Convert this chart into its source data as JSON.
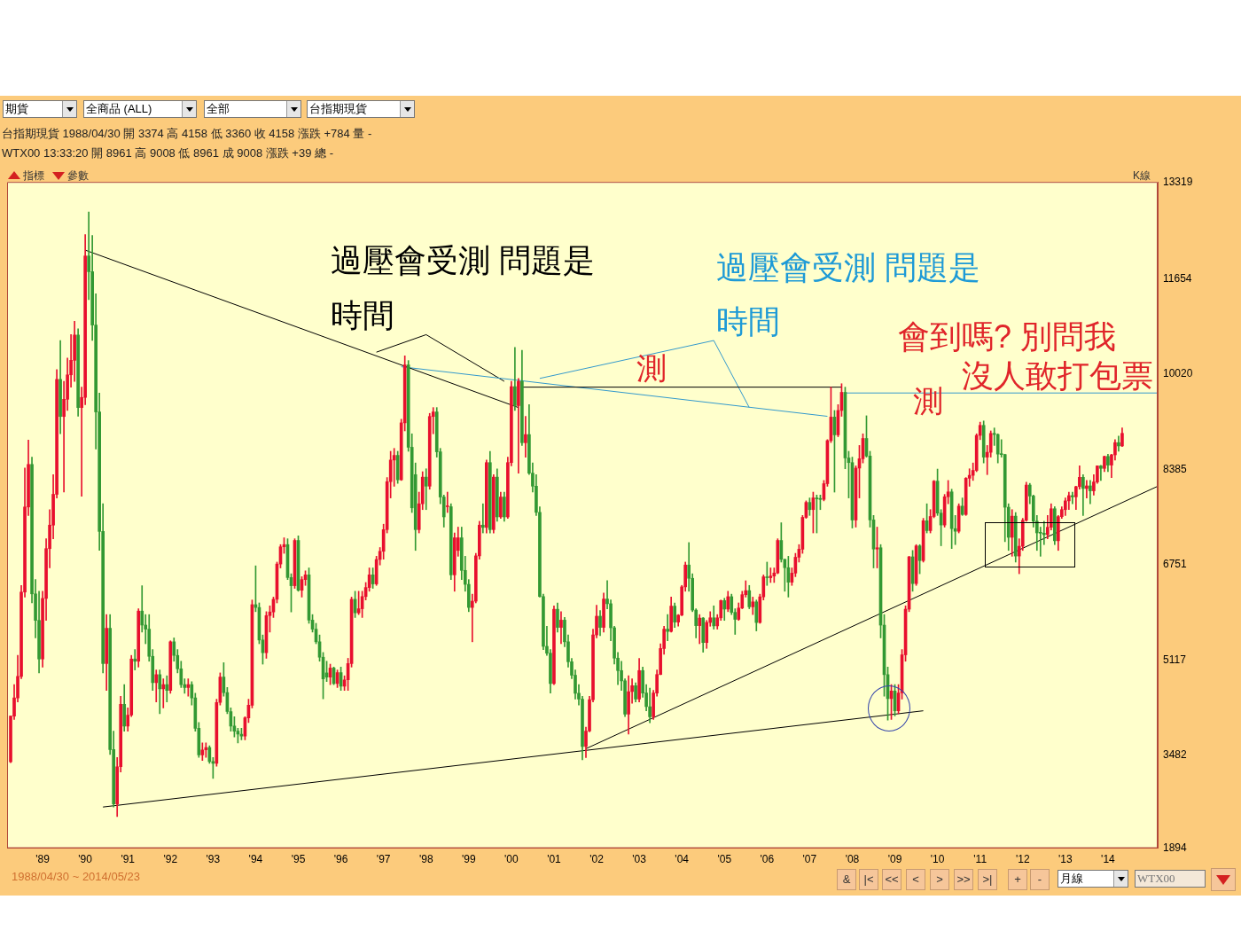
{
  "chart_data": {
    "type": "candlestick",
    "x": [
      "1988-04",
      "1988-05",
      "1988-06",
      "1988-07",
      "1988-08",
      "1988-09",
      "1988-10",
      "1988-11",
      "1988-12",
      "1989-01",
      "1989-02",
      "1989-03",
      "1989-04",
      "1989-05",
      "1989-06",
      "1989-07",
      "1989-08",
      "1989-09",
      "1989-10",
      "1989-11",
      "1989-12",
      "1990-01",
      "1990-02",
      "1990-03",
      "1990-04",
      "1990-05",
      "1990-06",
      "1990-07",
      "1990-08",
      "1990-09",
      "1990-10",
      "1990-11",
      "1990-12",
      "1991-01",
      "1991-02",
      "1991-03",
      "1991-04",
      "1991-05",
      "1991-06",
      "1991-07",
      "1991-08",
      "1991-09",
      "1991-10",
      "1991-11",
      "1991-12",
      "1992-01",
      "1992-02",
      "1992-03",
      "1992-04",
      "1992-05",
      "1992-06",
      "1992-07",
      "1992-08",
      "1992-09",
      "1992-10",
      "1992-11",
      "1992-12",
      "1993-01",
      "1993-02",
      "1993-03",
      "1993-04",
      "1993-05",
      "1993-06",
      "1993-07",
      "1993-08",
      "1993-09",
      "1993-10",
      "1993-11",
      "1993-12",
      "1994-01",
      "1994-02",
      "1994-03",
      "1994-04",
      "1994-05",
      "1994-06",
      "1994-07",
      "1994-08",
      "1994-09",
      "1994-10",
      "1994-11",
      "1994-12",
      "1995-01",
      "1995-02",
      "1995-03",
      "1995-04",
      "1995-05",
      "1995-06",
      "1995-07",
      "1995-08",
      "1995-09",
      "1995-10",
      "1995-11",
      "1995-12",
      "1996-01",
      "1996-02",
      "1996-03",
      "1996-04",
      "1996-05",
      "1996-06",
      "1996-07",
      "1996-08",
      "1996-09",
      "1996-10",
      "1996-11",
      "1996-12",
      "1997-01",
      "1997-02",
      "1997-03",
      "1997-04",
      "1997-05",
      "1997-06",
      "1997-07",
      "1997-08",
      "1997-09",
      "1997-10",
      "1997-11",
      "1997-12",
      "1998-01",
      "1998-02",
      "1998-03",
      "1998-04",
      "1998-05",
      "1998-06",
      "1998-07",
      "1998-08",
      "1998-09",
      "1998-10",
      "1998-11",
      "1998-12",
      "1999-01",
      "1999-02",
      "1999-03",
      "1999-04",
      "1999-05",
      "1999-06",
      "1999-07",
      "1999-08",
      "1999-09",
      "1999-10",
      "1999-11",
      "1999-12",
      "2000-01",
      "2000-02",
      "2000-03",
      "2000-04",
      "2000-05",
      "2000-06",
      "2000-07",
      "2000-08",
      "2000-09",
      "2000-10",
      "2000-11",
      "2000-12",
      "2001-01",
      "2001-02",
      "2001-03",
      "2001-04",
      "2001-05",
      "2001-06",
      "2001-07",
      "2001-08",
      "2001-09",
      "2001-10",
      "2001-11",
      "2001-12",
      "2002-01",
      "2002-02",
      "2002-03",
      "2002-04",
      "2002-05",
      "2002-06",
      "2002-07",
      "2002-08",
      "2002-09",
      "2002-10",
      "2002-11",
      "2002-12",
      "2003-01",
      "2003-02",
      "2003-03",
      "2003-04",
      "2003-05",
      "2003-06",
      "2003-07",
      "2003-08",
      "2003-09",
      "2003-10",
      "2003-11",
      "2003-12",
      "2004-01",
      "2004-02",
      "2004-03",
      "2004-04",
      "2004-05",
      "2004-06",
      "2004-07",
      "2004-08",
      "2004-09",
      "2004-10",
      "2004-11",
      "2004-12",
      "2005-01",
      "2005-02",
      "2005-03",
      "2005-04",
      "2005-05",
      "2005-06",
      "2005-07",
      "2005-08",
      "2005-09",
      "2005-10",
      "2005-11",
      "2005-12",
      "2006-01",
      "2006-02",
      "2006-03",
      "2006-04",
      "2006-05",
      "2006-06",
      "2006-07",
      "2006-08",
      "2006-09",
      "2006-10",
      "2006-11",
      "2006-12",
      "2007-01",
      "2007-02",
      "2007-03",
      "2007-04",
      "2007-05",
      "2007-06",
      "2007-07",
      "2007-08",
      "2007-09",
      "2007-10",
      "2007-11",
      "2007-12",
      "2008-01",
      "2008-02",
      "2008-03",
      "2008-04",
      "2008-05",
      "2008-06",
      "2008-07",
      "2008-08",
      "2008-09",
      "2008-10",
      "2008-11",
      "2008-12",
      "2009-01",
      "2009-02",
      "2009-03",
      "2009-04",
      "2009-05",
      "2009-06",
      "2009-07",
      "2009-08",
      "2009-09",
      "2009-10",
      "2009-11",
      "2009-12",
      "2010-01",
      "2010-02",
      "2010-03",
      "2010-04",
      "2010-05",
      "2010-06",
      "2010-07",
      "2010-08",
      "2010-09",
      "2010-10",
      "2010-11",
      "2010-12",
      "2011-01",
      "2011-02",
      "2011-03",
      "2011-04",
      "2011-05",
      "2011-06",
      "2011-07",
      "2011-08",
      "2011-09",
      "2011-10",
      "2011-11",
      "2011-12",
      "2012-01",
      "2012-02",
      "2012-03",
      "2012-04",
      "2012-05",
      "2012-06",
      "2012-07",
      "2012-08",
      "2012-09",
      "2012-10",
      "2012-11",
      "2012-12",
      "2013-01",
      "2013-02",
      "2013-03",
      "2013-04",
      "2013-05",
      "2013-06",
      "2013-07",
      "2013-08",
      "2013-09",
      "2013-10",
      "2013-11",
      "2013-12",
      "2014-01",
      "2014-02",
      "2014-03",
      "2014-04",
      "2014-05"
    ],
    "ohlc": [
      [
        3374,
        4158,
        3360,
        4158
      ],
      [
        4158,
        4700,
        4100,
        4470
      ],
      [
        4470,
        5200,
        4400,
        4840
      ],
      [
        4840,
        6400,
        4800,
        6286
      ],
      [
        6286,
        8413,
        6200,
        7745
      ],
      [
        7745,
        8894,
        7600,
        8475
      ],
      [
        8475,
        8600,
        6100,
        6255
      ],
      [
        6255,
        6500,
        5500,
        5800
      ],
      [
        5800,
        6300,
        4900,
        5138
      ],
      [
        5138,
        6300,
        5000,
        6177
      ],
      [
        6177,
        7200,
        5800,
        7031
      ],
      [
        7031,
        7700,
        6700,
        7434
      ],
      [
        7434,
        8300,
        7200,
        7962
      ],
      [
        7962,
        10100,
        7900,
        9933
      ],
      [
        9933,
        10600,
        9000,
        9297
      ],
      [
        9297,
        9900,
        8000,
        9592
      ],
      [
        9592,
        10300,
        9400,
        10011
      ],
      [
        10011,
        10700,
        9800,
        10260
      ],
      [
        10260,
        10930,
        9900,
        10694
      ],
      [
        10694,
        10800,
        9300,
        9450
      ],
      [
        9450,
        9800,
        7931,
        9624
      ],
      [
        9624,
        12416,
        9500,
        12050
      ],
      [
        12050,
        12805,
        11300,
        11780
      ],
      [
        11780,
        12400,
        10600,
        10865
      ],
      [
        10865,
        11400,
        8738,
        9375
      ],
      [
        9375,
        9700,
        7000,
        7326
      ],
      [
        7326,
        7800,
        4900,
        5060
      ],
      [
        5060,
        5900,
        4600,
        5665
      ],
      [
        5665,
        5900,
        3500,
        3586
      ],
      [
        3586,
        3900,
        2600,
        2654
      ],
      [
        2654,
        3450,
        2437,
        3290
      ],
      [
        3290,
        4500,
        3200,
        4362
      ],
      [
        4362,
        4700,
        3900,
        3989
      ],
      [
        3989,
        4300,
        3900,
        4176
      ],
      [
        4176,
        5200,
        4150,
        5138
      ],
      [
        5138,
        5300,
        4950,
        5100
      ],
      [
        5100,
        6000,
        5000,
        5960
      ],
      [
        5960,
        6395,
        5600,
        5720
      ],
      [
        5720,
        5900,
        5400,
        5650
      ],
      [
        5650,
        5900,
        5100,
        5184
      ],
      [
        5184,
        5300,
        4600,
        4734
      ],
      [
        4734,
        4950,
        4400,
        4870
      ],
      [
        4870,
        4950,
        4200,
        4625
      ],
      [
        4625,
        4800,
        4300,
        4700
      ],
      [
        4700,
        4850,
        4400,
        4600
      ],
      [
        4600,
        5450,
        4550,
        5433
      ],
      [
        5433,
        5500,
        5100,
        5200
      ],
      [
        5200,
        5300,
        4900,
        4970
      ],
      [
        4970,
        5100,
        4650,
        4700
      ],
      [
        4700,
        4800,
        4550,
        4650
      ],
      [
        4650,
        4800,
        4500,
        4700
      ],
      [
        4700,
        4750,
        4350,
        4470
      ],
      [
        4470,
        4550,
        3900,
        3950
      ],
      [
        3950,
        4050,
        3450,
        3492
      ],
      [
        3492,
        3700,
        3400,
        3580
      ],
      [
        3580,
        3700,
        3450,
        3620
      ],
      [
        3620,
        3650,
        3350,
        3380
      ],
      [
        3380,
        3450,
        3089,
        3350
      ],
      [
        3350,
        4450,
        3300,
        4393
      ],
      [
        4393,
        4900,
        4350,
        4828
      ],
      [
        4828,
        5075,
        4500,
        4563
      ],
      [
        4563,
        4650,
        4200,
        4237
      ],
      [
        4237,
        4300,
        3900,
        3989
      ],
      [
        3989,
        4150,
        3800,
        3900
      ],
      [
        3900,
        3950,
        3700,
        3850
      ],
      [
        3850,
        3950,
        3750,
        3818
      ],
      [
        3818,
        4150,
        3750,
        4128
      ],
      [
        4128,
        4450,
        4050,
        4346
      ],
      [
        4346,
        6150,
        4300,
        6070
      ],
      [
        6070,
        6736,
        5950,
        6022
      ],
      [
        6022,
        6100,
        5400,
        5464
      ],
      [
        5464,
        5550,
        5050,
        5246
      ],
      [
        5246,
        5950,
        5150,
        5883
      ],
      [
        5883,
        6050,
        5600,
        5945
      ],
      [
        5945,
        6200,
        5850,
        6162
      ],
      [
        6162,
        6800,
        6100,
        6767
      ],
      [
        6767,
        7100,
        6700,
        7062
      ],
      [
        7062,
        7217,
        6950,
        7100
      ],
      [
        7100,
        7200,
        6500,
        6535
      ],
      [
        6535,
        6600,
        5945,
        6395
      ],
      [
        6395,
        7200,
        6350,
        7171
      ],
      [
        7171,
        7250,
        6300,
        6317
      ],
      [
        6317,
        6550,
        6200,
        6500
      ],
      [
        6500,
        6650,
        6400,
        6581
      ],
      [
        6581,
        6700,
        5750,
        5805
      ],
      [
        5805,
        5900,
        5600,
        5650
      ],
      [
        5650,
        5750,
        5400,
        5433
      ],
      [
        5433,
        5550,
        5100,
        5169
      ],
      [
        5169,
        5250,
        4455,
        4797
      ],
      [
        4900,
        5100,
        4750,
        4828
      ],
      [
        4828,
        5050,
        4700,
        4983
      ],
      [
        4983,
        5000,
        4700,
        4719
      ],
      [
        4719,
        4950,
        4650,
        4905
      ],
      [
        4905,
        5000,
        4600,
        4672
      ],
      [
        4672,
        4850,
        4600,
        4780
      ],
      [
        4780,
        5150,
        4600,
        5060
      ],
      [
        5060,
        6200,
        5000,
        6162
      ],
      [
        6162,
        6300,
        5850,
        5930
      ],
      [
        5930,
        6300,
        5900,
        6000
      ],
      [
        6000,
        6300,
        5850,
        6209
      ],
      [
        6209,
        6450,
        6150,
        6364
      ],
      [
        6364,
        6700,
        6300,
        6581
      ],
      [
        6581,
        6700,
        6350,
        6426
      ],
      [
        6426,
        6900,
        6400,
        6845
      ],
      [
        6845,
        7050,
        6750,
        6985
      ],
      [
        6985,
        7450,
        6850,
        7357
      ],
      [
        7357,
        8250,
        7300,
        8180
      ],
      [
        8180,
        8700,
        7900,
        8550
      ],
      [
        8550,
        8750,
        8100,
        8630
      ],
      [
        8630,
        8700,
        8150,
        8211
      ],
      [
        8211,
        9250,
        8200,
        9188
      ],
      [
        9188,
        10337,
        9050,
        10181
      ],
      [
        10181,
        10256,
        8700,
        8769
      ],
      [
        8769,
        9000,
        7650,
        7730
      ],
      [
        8300,
        8500,
        7000,
        7357
      ],
      [
        7357,
        8000,
        7300,
        7800
      ],
      [
        7800,
        8350,
        7700,
        8257
      ],
      [
        8257,
        8400,
        7700,
        8102
      ],
      [
        8102,
        9350,
        8050,
        9297
      ],
      [
        9297,
        9450,
        9000,
        9375
      ],
      [
        9375,
        9450,
        8600,
        8691
      ],
      [
        8691,
        8750,
        7800,
        7916
      ],
      [
        7916,
        7950,
        7400,
        7575
      ],
      [
        7750,
        8000,
        7650,
        7750
      ],
      [
        7750,
        7800,
        6500,
        6581
      ],
      [
        6581,
        7300,
        6300,
        7217
      ],
      [
        7000,
        7400,
        6900,
        7217
      ],
      [
        7217,
        7400,
        6500,
        6658
      ],
      [
        6658,
        6900,
        6300,
        6418
      ],
      [
        6418,
        6500,
        5950,
        6022
      ],
      [
        6022,
        6250,
        5433,
        6130
      ],
      [
        6130,
        6950,
        6100,
        6907
      ],
      [
        6907,
        7500,
        6850,
        7434
      ],
      [
        7434,
        7800,
        7300,
        7395
      ],
      [
        7395,
        8550,
        7300,
        8506
      ],
      [
        8506,
        8700,
        7300,
        7357
      ],
      [
        7357,
        8300,
        7300,
        8257
      ],
      [
        8257,
        8400,
        7500,
        7575
      ],
      [
        7575,
        8000,
        7550,
        7916
      ],
      [
        7916,
        8000,
        7500,
        7575
      ],
      [
        7575,
        8600,
        7550,
        8506
      ],
      [
        8506,
        9900,
        8450,
        9809
      ],
      [
        9809,
        10482,
        9400,
        9483
      ],
      [
        9483,
        9950,
        8325,
        9900
      ],
      [
        9900,
        10430,
        8800,
        8847
      ],
      [
        8847,
        9300,
        8600,
        8987
      ],
      [
        8987,
        9500,
        8300,
        8325
      ],
      [
        8325,
        8500,
        8000,
        8102
      ],
      [
        8102,
        8300,
        7600,
        7653
      ],
      [
        7653,
        7750,
        6200,
        6209
      ],
      [
        6209,
        6250,
        5300,
        5355
      ],
      [
        5355,
        5700,
        5200,
        5238
      ],
      [
        5238,
        5300,
        4555,
        4719
      ],
      [
        4719,
        6050,
        4700,
        5991
      ],
      [
        5991,
        6100,
        5600,
        5680
      ],
      [
        5680,
        5950,
        5400,
        5805
      ],
      [
        5805,
        5850,
        5350,
        5433
      ],
      [
        5433,
        5550,
        5000,
        5091
      ],
      [
        5091,
        5150,
        4800,
        4860
      ],
      [
        4860,
        4950,
        4450,
        4550
      ],
      [
        4550,
        4700,
        4350,
        4450
      ],
      [
        4450,
        4500,
        3411,
        3636
      ],
      [
        3636,
        3970,
        3446,
        3903
      ],
      [
        3903,
        4500,
        3890,
        4441
      ],
      [
        4441,
        5650,
        4400,
        5551
      ],
      [
        5551,
        6060,
        5500,
        5872
      ],
      [
        5872,
        5970,
        5540,
        5680
      ],
      [
        5680,
        6270,
        5600,
        6167
      ],
      [
        6167,
        6484,
        6000,
        6086
      ],
      [
        6086,
        6150,
        5450,
        5674
      ],
      [
        5674,
        5700,
        5050,
        5153
      ],
      [
        5153,
        5250,
        4700,
        4940
      ],
      [
        4940,
        5100,
        4600,
        4764
      ],
      [
        4764,
        4800,
        4150,
        4191
      ],
      [
        4191,
        4850,
        3850,
        4579
      ],
      [
        4579,
        4800,
        4380,
        4680
      ],
      [
        4680,
        4730,
        4400,
        4452
      ],
      [
        4452,
        5150,
        4400,
        4940
      ],
      [
        4940,
        5000,
        4480,
        4555
      ],
      [
        4555,
        4700,
        4250,
        4321
      ],
      [
        4321,
        4640,
        4044,
        4148
      ],
      [
        4148,
        4600,
        4100,
        4555
      ],
      [
        4555,
        4950,
        4500,
        4872
      ],
      [
        4872,
        5400,
        4870,
        5318
      ],
      [
        5318,
        5700,
        5220,
        5650
      ],
      [
        5650,
        5900,
        5450,
        5611
      ],
      [
        5611,
        6200,
        5600,
        6045
      ],
      [
        6045,
        6100,
        5680,
        5771
      ],
      [
        5771,
        5900,
        5700,
        5890
      ],
      [
        5890,
        6400,
        5880,
        6375
      ],
      [
        6375,
        6800,
        6300,
        6750
      ],
      [
        6750,
        7135,
        6300,
        6522
      ],
      [
        6522,
        6600,
        5950,
        5977
      ],
      [
        5977,
        6000,
        5500,
        5710
      ],
      [
        5710,
        5900,
        5400,
        5840
      ],
      [
        5840,
        5850,
        5255,
        5420
      ],
      [
        5420,
        5800,
        5320,
        5765
      ],
      [
        5765,
        5950,
        5700,
        5845
      ],
      [
        5845,
        6050,
        5650,
        5706
      ],
      [
        5706,
        5900,
        5650,
        5844
      ],
      [
        5844,
        6150,
        5800,
        6140
      ],
      [
        6140,
        6180,
        5800,
        5994
      ],
      [
        5994,
        6300,
        5950,
        6207
      ],
      [
        6207,
        6250,
        5900,
        5938
      ],
      [
        5938,
        6000,
        5560,
        5818
      ],
      [
        5818,
        6100,
        5800,
        6012
      ],
      [
        6012,
        6300,
        6000,
        6241
      ],
      [
        6241,
        6480,
        6200,
        6311
      ],
      [
        6311,
        6400,
        6000,
        6033
      ],
      [
        6033,
        6200,
        5900,
        6118
      ],
      [
        6118,
        6150,
        5620,
        5764
      ],
      [
        5764,
        6250,
        5750,
        6204
      ],
      [
        6204,
        6580,
        6150,
        6548
      ],
      [
        6548,
        6800,
        6400,
        6532
      ],
      [
        6532,
        6700,
        6450,
        6561
      ],
      [
        6561,
        6700,
        6450,
        6613
      ],
      [
        6613,
        7200,
        6600,
        7171
      ],
      [
        7171,
        7475,
        6800,
        6847
      ],
      [
        6847,
        6850,
        6300,
        6704
      ],
      [
        6704,
        6900,
        6200,
        6455
      ],
      [
        6455,
        6700,
        6400,
        6611
      ],
      [
        6611,
        6950,
        6550,
        6883
      ],
      [
        6883,
        7100,
        6800,
        7021
      ],
      [
        7021,
        7600,
        6950,
        7567
      ],
      [
        7567,
        7850,
        7550,
        7823
      ],
      [
        7823,
        7900,
        7600,
        7700
      ],
      [
        7700,
        8000,
        7300,
        7901
      ],
      [
        7901,
        7950,
        7300,
        7884
      ],
      [
        7884,
        7950,
        7700,
        7875
      ],
      [
        7875,
        8200,
        7850,
        8145
      ],
      [
        8145,
        8900,
        8100,
        8883
      ],
      [
        8883,
        9800,
        8850,
        9287
      ],
      [
        9287,
        9400,
        8000,
        8982
      ],
      [
        8982,
        9500,
        8950,
        9400
      ],
      [
        9400,
        9859,
        9300,
        9711
      ],
      [
        9711,
        9800,
        8400,
        8586
      ],
      [
        8586,
        8700,
        7900,
        8506
      ],
      [
        8506,
        8600,
        7384,
        7521
      ],
      [
        7521,
        8450,
        7400,
        8412
      ],
      [
        8412,
        8800,
        7900,
        8572
      ],
      [
        8572,
        9000,
        8500,
        8920
      ],
      [
        8920,
        9309,
        8600,
        8619
      ],
      [
        8619,
        8700,
        7400,
        7523
      ],
      [
        7523,
        7600,
        6700,
        7024
      ],
      [
        7024,
        7400,
        6700,
        7046
      ],
      [
        7046,
        7100,
        5500,
        5719
      ],
      [
        5719,
        5900,
        4500,
        4870
      ],
      [
        4870,
        5000,
        4089,
        4460
      ],
      [
        4460,
        4700,
        4100,
        4591
      ],
      [
        4591,
        4700,
        4164,
        4248
      ],
      [
        4248,
        4700,
        4200,
        4557
      ],
      [
        4557,
        5300,
        4450,
        5210
      ],
      [
        5210,
        6050,
        5100,
        5993
      ],
      [
        5993,
        6900,
        5950,
        6890
      ],
      [
        6890,
        7000,
        6300,
        6432
      ],
      [
        6432,
        7100,
        6400,
        7078
      ],
      [
        7078,
        7100,
        6600,
        6826
      ],
      [
        6826,
        7550,
        6800,
        7509
      ],
      [
        7509,
        7800,
        7300,
        7340
      ],
      [
        7340,
        7700,
        7300,
        7582
      ],
      [
        7582,
        8200,
        7560,
        8188
      ],
      [
        8188,
        8395,
        7600,
        7640
      ],
      [
        7640,
        7700,
        7080,
        7436
      ],
      [
        7436,
        7960,
        7400,
        7920
      ],
      [
        7920,
        8200,
        7800,
        8004
      ],
      [
        8004,
        8050,
        7032,
        7374
      ],
      [
        7374,
        7600,
        7100,
        7329
      ],
      [
        7329,
        7800,
        7300,
        7760
      ],
      [
        7760,
        7900,
        7600,
        7616
      ],
      [
        7616,
        8250,
        7600,
        8238
      ],
      [
        8238,
        8400,
        8100,
        8288
      ],
      [
        8288,
        8500,
        8200,
        8372
      ],
      [
        8372,
        9000,
        8350,
        8973
      ],
      [
        8973,
        9200,
        8900,
        9145
      ],
      [
        9145,
        9220,
        8500,
        8600
      ],
      [
        8600,
        8800,
        8300,
        8683
      ],
      [
        8683,
        9050,
        8600,
        9007
      ],
      [
        9007,
        9100,
        8800,
        8988
      ],
      [
        8988,
        9000,
        8500,
        8652
      ],
      [
        8652,
        8900,
        8600,
        8644
      ],
      [
        8644,
        8650,
        7150,
        7741
      ],
      [
        7741,
        7800,
        7000,
        7225
      ],
      [
        7225,
        7700,
        6900,
        7588
      ],
      [
        7588,
        7650,
        6800,
        6904
      ],
      [
        6904,
        7200,
        6600,
        7072
      ],
      [
        7072,
        7550,
        7000,
        7517
      ],
      [
        7517,
        8170,
        7500,
        8121
      ],
      [
        8121,
        8150,
        7800,
        7933
      ],
      [
        7933,
        7950,
        7400,
        7501
      ],
      [
        7501,
        7600,
        7000,
        7301
      ],
      [
        7301,
        7400,
        6900,
        7296
      ],
      [
        7296,
        7500,
        7100,
        7270
      ],
      [
        7270,
        7600,
        7200,
        7397
      ],
      [
        7397,
        7800,
        7350,
        7715
      ],
      [
        7715,
        7750,
        7100,
        7166
      ],
      [
        7166,
        7600,
        7000,
        7580
      ],
      [
        7580,
        7750,
        7550,
        7700
      ],
      [
        7700,
        7900,
        7600,
        7850
      ],
      [
        7850,
        8000,
        7700,
        7940
      ],
      [
        7940,
        8000,
        7800,
        7919
      ],
      [
        7919,
        8100,
        7700,
        8094
      ],
      [
        8094,
        8450,
        8050,
        8254
      ],
      [
        8254,
        8300,
        7600,
        8062
      ],
      [
        8062,
        8200,
        7900,
        8107
      ],
      [
        8107,
        8200,
        7800,
        8022
      ],
      [
        8022,
        8300,
        7950,
        8174
      ],
      [
        8174,
        8450,
        8150,
        8450
      ],
      [
        8450,
        8460,
        8200,
        8407
      ],
      [
        8407,
        8620,
        8350,
        8612
      ],
      [
        8612,
        8650,
        8350,
        8463
      ],
      [
        8463,
        8650,
        8250,
        8639
      ],
      [
        8639,
        8900,
        8550,
        8849
      ],
      [
        8849,
        8960,
        8700,
        8792
      ],
      [
        8792,
        9100,
        8780,
        9008
      ]
    ],
    "series": [
      {
        "type": "line",
        "color": "#000000",
        "x": [
          "1990-01",
          "2000-03"
        ],
        "values": [
          12150,
          9450
        ]
      },
      {
        "type": "line",
        "color": "#000000",
        "x": [
          "1990-06",
          "2009-09"
        ],
        "values": [
          2600,
          4250
        ]
      },
      {
        "type": "line",
        "color": "#000000",
        "x": [
          "2001-10",
          "2015-03"
        ],
        "values": [
          3600,
          8100
        ]
      },
      {
        "type": "line",
        "color": "#000000",
        "x": [
          "2000-04",
          "2007-10"
        ],
        "values": [
          9800,
          9800
        ]
      },
      {
        "type": "line",
        "color": "#3399cc",
        "x": [
          "1997-06",
          "2007-06"
        ],
        "values": [
          10150,
          9300
        ]
      },
      {
        "type": "line",
        "color": "#3399cc",
        "x": [
          "2007-11",
          "2015-03"
        ],
        "values": [
          9700,
          9700
        ]
      },
      {
        "type": "line",
        "color": "#000000",
        "x": [
          "1996-11",
          "1998-01",
          "1999-11"
        ],
        "values": [
          10400,
          10700,
          9900
        ]
      },
      {
        "type": "line",
        "color": "#3399cc",
        "x": [
          "2000-09",
          "2004-10",
          "2005-08"
        ],
        "values": [
          9950,
          10600,
          9450
        ]
      }
    ],
    "xlim": [
      "1988-03",
      "2015-03"
    ],
    "xticks": [
      {
        "value": "1989-01",
        "label": "'89"
      },
      {
        "value": "1990-01",
        "label": "'90"
      },
      {
        "value": "1991-01",
        "label": "'91"
      },
      {
        "value": "1992-01",
        "label": "'92"
      },
      {
        "value": "1993-01",
        "label": "'93"
      },
      {
        "value": "1994-01",
        "label": "'94"
      },
      {
        "value": "1995-01",
        "label": "'95"
      },
      {
        "value": "1996-01",
        "label": "'96"
      },
      {
        "value": "1997-01",
        "label": "'97"
      },
      {
        "value": "1998-01",
        "label": "'98"
      },
      {
        "value": "1999-01",
        "label": "'99"
      },
      {
        "value": "2000-01",
        "label": "'00"
      },
      {
        "value": "2001-01",
        "label": "'01"
      },
      {
        "value": "2002-01",
        "label": "'02"
      },
      {
        "value": "2003-01",
        "label": "'03"
      },
      {
        "value": "2004-01",
        "label": "'04"
      },
      {
        "value": "2005-01",
        "label": "'05"
      },
      {
        "value": "2006-01",
        "label": "'06"
      },
      {
        "value": "2007-01",
        "label": "'07"
      },
      {
        "value": "2008-01",
        "label": "'08"
      },
      {
        "value": "2009-01",
        "label": "'09"
      },
      {
        "value": "2010-01",
        "label": "'10"
      },
      {
        "value": "2011-01",
        "label": "'11"
      },
      {
        "value": "2012-01",
        "label": "'12"
      },
      {
        "value": "2013-01",
        "label": "'13"
      },
      {
        "value": "2014-01",
        "label": "'14"
      }
    ],
    "ylim": [
      1894,
      13319
    ],
    "yticks": [
      1894,
      3482,
      5117,
      6751,
      8385,
      10020,
      11654,
      13319
    ],
    "annotations": [
      "期貨",
      "全商品 (ALL)",
      "全部",
      "台指期現貨",
      "台指期現貨 1988/04/30 開 3374 高 4158 低 3360 收 4158 漲跌 +784 量 -",
      "WTX00 13:33:20 開 8961 高 9008 低 8961 成 9008 漲跌 +39 總 -",
      "指標",
      "參數",
      "K線",
      "過壓會受測 問題是",
      "時間",
      "過壓會受測 問題是",
      "時間",
      "測",
      "會到嗎? 別問我",
      "測",
      "沒人敢打包票",
      "1988/04/30 ~ 2014/05/23",
      "&",
      "|<",
      "<<",
      "<",
      ">",
      ">>",
      ">|",
      "+",
      "-",
      "月線",
      "WTX00"
    ]
  }
}
